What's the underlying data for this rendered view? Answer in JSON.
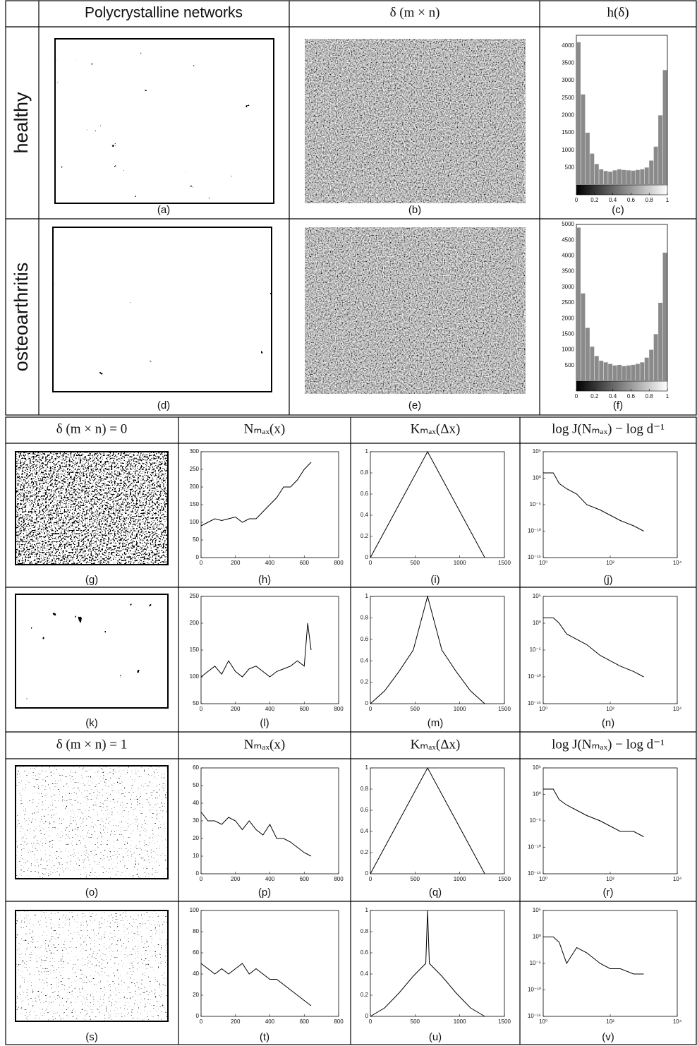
{
  "table": {
    "headers": [
      "Polycrystalline networks",
      "δ (m × n)",
      "h(δ)"
    ],
    "row_labels": [
      "healthy",
      "osteoarthritis"
    ],
    "panels": [
      [
        "(a)",
        "(b)",
        "(c)"
      ],
      [
        "(d)",
        "(e)",
        "(f)"
      ]
    ],
    "sections": [
      {
        "headers": [
          "δ (m × n) = 0",
          "Nₘₐₓ(x)",
          "Kₘₐₓ(Δx)",
          "log J(Nₘₐₓ) − log d⁻¹"
        ],
        "panels": [
          [
            "(g)",
            "(h)",
            "(i)",
            "(j)"
          ],
          [
            "(k)",
            "(l)",
            "(m)",
            "(n)"
          ]
        ]
      },
      {
        "headers": [
          "δ (m × n) = 1",
          "Nₘₐₓ(x)",
          "Kₘₐₓ(Δx)",
          "log J(Nₘₐₓ) − log d⁻¹"
        ],
        "panels": [
          [
            "(o)",
            "(p)",
            "(q)",
            "(r)"
          ],
          [
            "(s)",
            "(t)",
            "(u)",
            "(v)"
          ]
        ]
      }
    ]
  },
  "chart_data": [
    {
      "type": "histogram",
      "bins": [
        0,
        0.05,
        0.1,
        0.15,
        0.2,
        0.25,
        0.3,
        0.35,
        0.4,
        0.45,
        0.5,
        0.55,
        0.6,
        0.65,
        0.7,
        0.75,
        0.8,
        0.85,
        0.9,
        0.95,
        1
      ],
      "values": [
        4100,
        2600,
        1500,
        900,
        600,
        450,
        400,
        380,
        420,
        450,
        430,
        420,
        410,
        430,
        450,
        500,
        700,
        1100,
        2000,
        3300
      ],
      "color": "#8a8a8a",
      "xlim": [
        0,
        1
      ],
      "ylim": [
        0,
        4300
      ],
      "xticks": [
        0,
        0.2,
        0.4,
        0.6,
        0.8,
        1
      ],
      "yticks": [
        500,
        1000,
        1500,
        2000,
        2500,
        3000,
        3500,
        4000
      ]
    },
    {
      "type": "histogram",
      "bins": [
        0,
        0.05,
        0.1,
        0.15,
        0.2,
        0.25,
        0.3,
        0.35,
        0.4,
        0.45,
        0.5,
        0.55,
        0.6,
        0.65,
        0.7,
        0.75,
        0.8,
        0.85,
        0.9,
        0.95,
        1
      ],
      "values": [
        4900,
        2800,
        1700,
        1100,
        800,
        650,
        600,
        550,
        500,
        520,
        480,
        500,
        520,
        550,
        600,
        750,
        1000,
        1500,
        2500,
        4100
      ],
      "color": "#8a8a8a",
      "xlim": [
        0,
        1
      ],
      "ylim": [
        0,
        5000
      ],
      "xticks": [
        0,
        0.2,
        0.4,
        0.6,
        0.8,
        1
      ],
      "yticks": [
        500,
        1000,
        1500,
        2000,
        2500,
        3000,
        3500,
        4000,
        4500,
        5000
      ]
    },
    {
      "type": "line",
      "x": [
        0,
        40,
        80,
        120,
        160,
        200,
        240,
        280,
        320,
        360,
        400,
        440,
        480,
        520,
        560,
        600,
        640
      ],
      "values": [
        90,
        100,
        110,
        105,
        110,
        115,
        100,
        110,
        110,
        130,
        150,
        170,
        200,
        200,
        220,
        250,
        270
      ],
      "color": "#000",
      "xlim": [
        0,
        800
      ],
      "ylim": [
        0,
        300
      ],
      "xticks": [
        0,
        200,
        400,
        600,
        800
      ],
      "yticks": [
        0,
        50,
        100,
        150,
        200,
        250,
        300
      ]
    },
    {
      "type": "line",
      "x": [
        0,
        160,
        320,
        480,
        640,
        800,
        960,
        1120,
        1280
      ],
      "values": [
        0,
        0.25,
        0.5,
        0.75,
        1,
        0.75,
        0.5,
        0.25,
        0
      ],
      "color": "#000",
      "xlim": [
        0,
        1500
      ],
      "ylim": [
        0,
        1
      ],
      "xticks": [
        0,
        500,
        1000,
        1500
      ],
      "yticks": [
        0,
        0.2,
        0.4,
        0.6,
        0.8,
        1
      ]
    },
    {
      "type": "line",
      "xscale": "log",
      "yscale": "log",
      "x": [
        1,
        2,
        3,
        5,
        10,
        20,
        50,
        100,
        200,
        500,
        1000
      ],
      "values": [
        10,
        10,
        0.1,
        0.01,
        0.001,
        1e-05,
        1e-06,
        1e-07,
        1e-08,
        1e-09,
        1e-10
      ],
      "color": "#000",
      "xlim": [
        1,
        10000
      ],
      "ylim": [
        1e-15,
        100000
      ],
      "xticks": [
        {
          "value": 1,
          "label": "10⁰"
        },
        {
          "value": 100,
          "label": "10²"
        },
        {
          "value": 10000,
          "label": "10⁴"
        }
      ],
      "yticks": [
        {
          "value": 1e-15,
          "label": "10⁻¹⁵"
        },
        {
          "value": 1e-10,
          "label": "10⁻¹⁰"
        },
        {
          "value": 1e-05,
          "label": "10⁻⁵"
        },
        {
          "value": 1,
          "label": "10⁰"
        },
        {
          "value": 100000,
          "label": "10⁵"
        }
      ]
    },
    {
      "type": "line",
      "x": [
        0,
        40,
        80,
        120,
        160,
        200,
        240,
        280,
        320,
        360,
        400,
        440,
        480,
        520,
        560,
        600,
        620,
        640
      ],
      "values": [
        100,
        110,
        120,
        105,
        130,
        110,
        100,
        115,
        120,
        110,
        100,
        110,
        115,
        120,
        130,
        120,
        200,
        150
      ],
      "color": "#000",
      "xlim": [
        0,
        800
      ],
      "ylim": [
        50,
        250
      ],
      "xticks": [
        0,
        200,
        400,
        600,
        800
      ],
      "yticks": [
        50,
        100,
        150,
        200,
        250
      ]
    },
    {
      "type": "line",
      "x": [
        0,
        160,
        320,
        480,
        640,
        800,
        960,
        1120,
        1280
      ],
      "values": [
        0,
        0.12,
        0.3,
        0.5,
        1,
        0.5,
        0.3,
        0.12,
        0
      ],
      "color": "#000",
      "xlim": [
        0,
        1500
      ],
      "ylim": [
        0,
        1
      ],
      "xticks": [
        0,
        500,
        1000,
        1500
      ],
      "yticks": [
        0,
        0.2,
        0.4,
        0.6,
        0.8,
        1
      ]
    },
    {
      "type": "line",
      "xscale": "log",
      "yscale": "log",
      "x": [
        1,
        2,
        3,
        5,
        10,
        20,
        50,
        100,
        200,
        500,
        1000
      ],
      "values": [
        10,
        10,
        1,
        0.01,
        0.001,
        0.0001,
        1e-06,
        1e-07,
        1e-08,
        1e-09,
        1e-10
      ],
      "color": "#000",
      "xlim": [
        1,
        10000
      ],
      "ylim": [
        1e-15,
        100000
      ],
      "xticks": [
        {
          "value": 1,
          "label": "10⁰"
        },
        {
          "value": 100,
          "label": "10²"
        },
        {
          "value": 10000,
          "label": "10⁴"
        }
      ],
      "yticks": [
        {
          "value": 1e-15,
          "label": "10⁻¹⁵"
        },
        {
          "value": 1e-10,
          "label": "10⁻¹⁰"
        },
        {
          "value": 1e-05,
          "label": "10⁻⁵"
        },
        {
          "value": 1,
          "label": "10⁰"
        },
        {
          "value": 100000,
          "label": "10⁵"
        }
      ]
    },
    {
      "type": "line",
      "x": [
        0,
        40,
        80,
        120,
        160,
        200,
        240,
        280,
        320,
        360,
        400,
        440,
        480,
        520,
        560,
        600,
        640
      ],
      "values": [
        35,
        30,
        30,
        28,
        32,
        30,
        25,
        30,
        25,
        22,
        28,
        20,
        20,
        18,
        15,
        12,
        10
      ],
      "color": "#000",
      "xlim": [
        0,
        800
      ],
      "ylim": [
        0,
        60
      ],
      "xticks": [
        0,
        200,
        400,
        600,
        800
      ],
      "yticks": [
        0,
        10,
        20,
        30,
        40,
        50,
        60
      ]
    },
    {
      "type": "line",
      "x": [
        0,
        160,
        320,
        480,
        640,
        800,
        960,
        1120,
        1280
      ],
      "values": [
        0,
        0.25,
        0.5,
        0.75,
        1,
        0.75,
        0.5,
        0.25,
        0
      ],
      "color": "#000",
      "xlim": [
        0,
        1500
      ],
      "ylim": [
        0,
        1
      ],
      "xticks": [
        0,
        500,
        1000,
        1500
      ],
      "yticks": [
        0,
        0.2,
        0.4,
        0.6,
        0.8,
        1
      ]
    },
    {
      "type": "line",
      "xscale": "log",
      "yscale": "log",
      "x": [
        1,
        2,
        3,
        5,
        10,
        20,
        50,
        100,
        200,
        500,
        1000
      ],
      "values": [
        10,
        10,
        0.1,
        0.01,
        0.001,
        0.0001,
        1e-05,
        1e-06,
        1e-07,
        1e-07,
        1e-08
      ],
      "color": "#000",
      "xlim": [
        1,
        10000
      ],
      "ylim": [
        1e-15,
        100000
      ],
      "xticks": [
        {
          "value": 1,
          "label": "10⁰"
        },
        {
          "value": 100,
          "label": "10²"
        },
        {
          "value": 10000,
          "label": "10⁴"
        }
      ],
      "yticks": [
        {
          "value": 1e-15,
          "label": "10⁻¹⁵"
        },
        {
          "value": 1e-10,
          "label": "10⁻¹⁰"
        },
        {
          "value": 1e-05,
          "label": "10⁻⁵"
        },
        {
          "value": 1,
          "label": "10⁰"
        },
        {
          "value": 100000,
          "label": "10⁵"
        }
      ]
    },
    {
      "type": "line",
      "x": [
        0,
        40,
        80,
        120,
        160,
        200,
        240,
        280,
        320,
        360,
        400,
        440,
        480,
        520,
        560,
        600,
        640
      ],
      "values": [
        50,
        45,
        40,
        45,
        40,
        45,
        50,
        40,
        45,
        40,
        35,
        35,
        30,
        25,
        20,
        15,
        10
      ],
      "color": "#000",
      "xlim": [
        0,
        800
      ],
      "ylim": [
        0,
        100
      ],
      "xticks": [
        0,
        200,
        400,
        600,
        800
      ],
      "yticks": [
        0,
        20,
        40,
        60,
        80,
        100
      ]
    },
    {
      "type": "line",
      "x": [
        0,
        160,
        320,
        480,
        620,
        640,
        660,
        800,
        960,
        1120,
        1280
      ],
      "values": [
        0,
        0.08,
        0.22,
        0.38,
        0.5,
        1,
        0.5,
        0.38,
        0.22,
        0.08,
        0
      ],
      "color": "#000",
      "xlim": [
        0,
        1500
      ],
      "ylim": [
        0,
        1
      ],
      "xticks": [
        0,
        500,
        1000,
        1500
      ],
      "yticks": [
        0,
        0.2,
        0.4,
        0.6,
        0.8,
        1
      ]
    },
    {
      "type": "line",
      "xscale": "log",
      "yscale": "log",
      "x": [
        1,
        2,
        3,
        5,
        10,
        20,
        50,
        100,
        200,
        500,
        1000
      ],
      "values": [
        1,
        1,
        0.1,
        1e-05,
        0.01,
        0.001,
        1e-05,
        1e-06,
        1e-06,
        1e-07,
        1e-07
      ],
      "color": "#000",
      "xlim": [
        1,
        10000
      ],
      "ylim": [
        1e-15,
        100000
      ],
      "xticks": [
        {
          "value": 1,
          "label": "10⁰"
        },
        {
          "value": 100,
          "label": "10²"
        },
        {
          "value": 10000,
          "label": "10⁴"
        }
      ],
      "yticks": [
        {
          "value": 1e-15,
          "label": "10⁻¹⁵"
        },
        {
          "value": 1e-10,
          "label": "10⁻¹⁰"
        },
        {
          "value": 1e-05,
          "label": "10⁻⁵"
        },
        {
          "value": 1,
          "label": "10⁰"
        },
        {
          "value": 100000,
          "label": "10⁵"
        }
      ]
    }
  ]
}
